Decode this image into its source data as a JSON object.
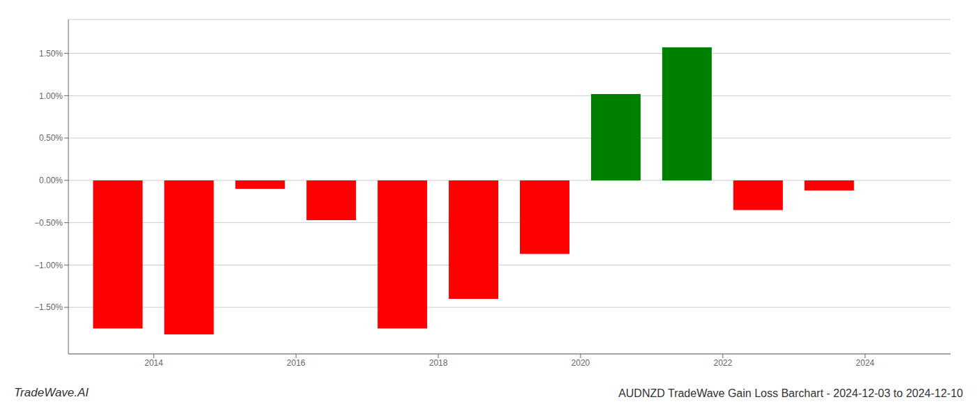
{
  "chart_data": {
    "type": "bar",
    "title": "AUDNZD TradeWave Gain Loss Barchart - 2024-12-03 to 2024-12-10",
    "annotations": [
      "TradeWave.AI"
    ],
    "x": [
      2013.5,
      2014.5,
      2015.5,
      2016.5,
      2017.5,
      2018.5,
      2019.5,
      2020.5,
      2021.5,
      2022.5,
      2023.5
    ],
    "values": [
      -1.75,
      -1.82,
      -0.1,
      -0.47,
      -1.75,
      -1.4,
      -0.87,
      1.02,
      1.57,
      -0.35,
      -0.12
    ],
    "colors": [
      "#ff0000",
      "#ff0000",
      "#ff0000",
      "#ff0000",
      "#ff0000",
      "#ff0000",
      "#ff0000",
      "#008000",
      "#008000",
      "#ff0000",
      "#ff0000"
    ],
    "xlim": [
      2012.8,
      2025.2
    ],
    "xticks": [
      2014,
      2016,
      2018,
      2020,
      2022,
      2024
    ],
    "ylim": [
      -2.05,
      1.9
    ],
    "yticks": [
      {
        "value": -1.5,
        "label": "−1.50%"
      },
      {
        "value": -1.0,
        "label": "−1.00%"
      },
      {
        "value": -0.5,
        "label": "−0.50%"
      },
      {
        "value": 0.0,
        "label": "0.00%"
      },
      {
        "value": 0.5,
        "label": "0.50%"
      },
      {
        "value": 1.0,
        "label": "1.00%"
      },
      {
        "value": 1.5,
        "label": "1.50%"
      }
    ],
    "grid": true
  }
}
